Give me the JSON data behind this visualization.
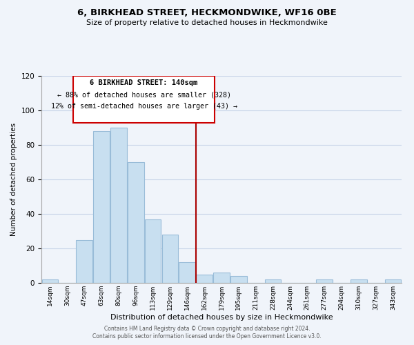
{
  "title": "6, BIRKHEAD STREET, HECKMONDWIKE, WF16 0BE",
  "subtitle": "Size of property relative to detached houses in Heckmondwike",
  "xlabel": "Distribution of detached houses by size in Heckmondwike",
  "ylabel": "Number of detached properties",
  "bin_labels": [
    "14sqm",
    "30sqm",
    "47sqm",
    "63sqm",
    "80sqm",
    "96sqm",
    "113sqm",
    "129sqm",
    "146sqm",
    "162sqm",
    "179sqm",
    "195sqm",
    "211sqm",
    "228sqm",
    "244sqm",
    "261sqm",
    "277sqm",
    "294sqm",
    "310sqm",
    "327sqm",
    "343sqm"
  ],
  "bar_heights": [
    2,
    0,
    25,
    88,
    90,
    70,
    37,
    28,
    12,
    5,
    6,
    4,
    0,
    2,
    0,
    0,
    2,
    0,
    2,
    0,
    2
  ],
  "bar_color": "#c8dff0",
  "bar_edge_color": "#99bcd8",
  "property_label": "6 BIRKHEAD STREET: 140sqm",
  "annotation_line1": "← 88% of detached houses are smaller (328)",
  "annotation_line2": "12% of semi-detached houses are larger (43) →",
  "vline_color": "#aa0000",
  "vline_x_bin": 8.5,
  "box_color": "#cc0000",
  "ylim": [
    0,
    120
  ],
  "yticks": [
    0,
    20,
    40,
    60,
    80,
    100,
    120
  ],
  "footer1": "Contains HM Land Registry data © Crown copyright and database right 2024.",
  "footer2": "Contains public sector information licensed under the Open Government Licence v3.0.",
  "bg_color": "#f0f4fa",
  "grid_color": "#c8d4e8"
}
